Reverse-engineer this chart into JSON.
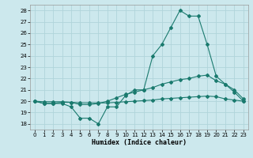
{
  "xlabel": "Humidex (Indice chaleur)",
  "ylabel": "",
  "xlim": [
    -0.5,
    23.5
  ],
  "ylim": [
    17.5,
    28.5
  ],
  "yticks": [
    18,
    19,
    20,
    21,
    22,
    23,
    24,
    25,
    26,
    27,
    28
  ],
  "xticks": [
    0,
    1,
    2,
    3,
    4,
    5,
    6,
    7,
    8,
    9,
    10,
    11,
    12,
    13,
    14,
    15,
    16,
    17,
    18,
    19,
    20,
    21,
    22,
    23
  ],
  "bg_color": "#cce8ed",
  "line_color": "#1a7a6e",
  "grid_color": "#b0d4da",
  "series": [
    [
      20.0,
      19.8,
      19.8,
      19.8,
      19.5,
      18.5,
      18.5,
      18.0,
      19.5,
      19.5,
      20.5,
      21.0,
      21.0,
      24.0,
      25.0,
      26.5,
      28.0,
      27.5,
      27.5,
      25.0,
      22.2,
      21.5,
      20.8,
      20.0
    ],
    [
      20.0,
      19.8,
      19.8,
      19.9,
      19.9,
      19.7,
      19.7,
      19.8,
      20.0,
      20.3,
      20.6,
      20.8,
      21.0,
      21.2,
      21.5,
      21.7,
      21.9,
      22.0,
      22.2,
      22.3,
      21.8,
      21.5,
      21.0,
      20.2
    ],
    [
      20.0,
      19.95,
      19.95,
      19.95,
      19.9,
      19.85,
      19.85,
      19.85,
      19.85,
      19.9,
      19.95,
      20.0,
      20.05,
      20.1,
      20.2,
      20.25,
      20.3,
      20.35,
      20.4,
      20.45,
      20.4,
      20.2,
      20.1,
      20.0
    ]
  ]
}
